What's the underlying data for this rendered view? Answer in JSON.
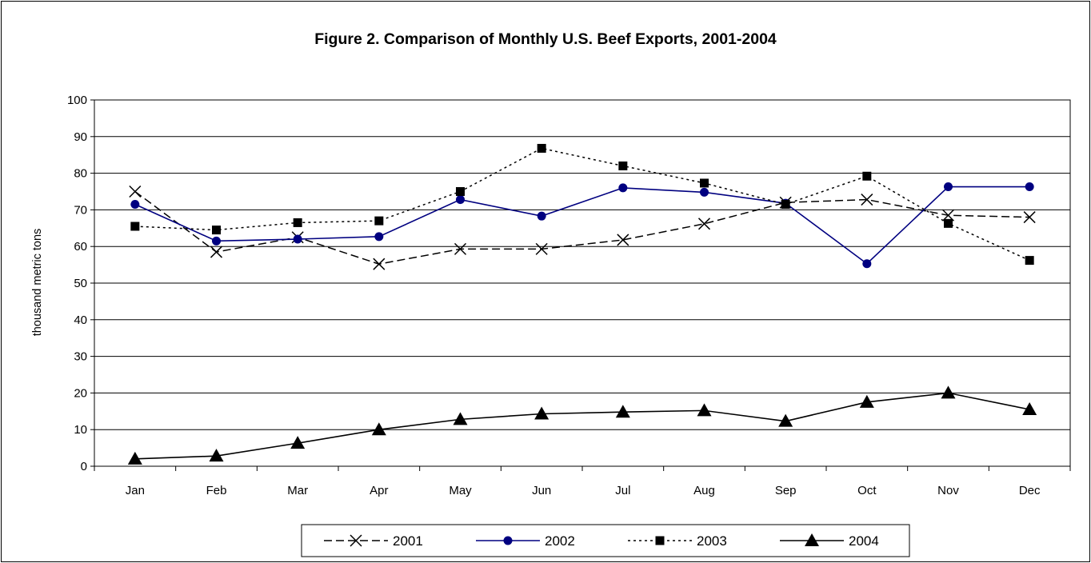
{
  "chart_data": {
    "type": "line",
    "title": "Figure 2. Comparison of Monthly U.S. Beef Exports, 2001-2004",
    "xlabel": "",
    "ylabel": "thousand metric tons",
    "categories": [
      "Jan",
      "Feb",
      "Mar",
      "Apr",
      "May",
      "Jun",
      "Jul",
      "Aug",
      "Sep",
      "Oct",
      "Nov",
      "Dec"
    ],
    "ylim": [
      0,
      100
    ],
    "yticks": [
      "0",
      "10",
      "20",
      "30",
      "40",
      "50",
      "60",
      "70",
      "80",
      "90",
      "100"
    ],
    "grid": true,
    "legend": "bottom",
    "series": [
      {
        "name": "2001",
        "color": "#000000",
        "style": "dashed",
        "marker": "x",
        "values": [
          75,
          58.5,
          62.5,
          55.2,
          59.3,
          59.3,
          61.8,
          66.2,
          72,
          72.8,
          68.5,
          68
        ]
      },
      {
        "name": "2002",
        "color": "#000080",
        "style": "solid",
        "marker": "circle",
        "values": [
          71.5,
          61.5,
          62,
          62.7,
          72.8,
          68.3,
          76,
          74.8,
          71.8,
          55.3,
          76.3,
          76.3
        ]
      },
      {
        "name": "2003",
        "color": "#000000",
        "style": "dotted",
        "marker": "square",
        "values": [
          65.5,
          64.5,
          66.5,
          67,
          75,
          86.8,
          82,
          77.3,
          71.5,
          79.2,
          66.3,
          56.2
        ]
      },
      {
        "name": "2004",
        "color": "#000000",
        "style": "solid",
        "marker": "triangle",
        "values": [
          2,
          2.8,
          6.3,
          10,
          12.8,
          14.3,
          14.8,
          15.2,
          12.3,
          17.5,
          20,
          15.5
        ]
      }
    ]
  }
}
